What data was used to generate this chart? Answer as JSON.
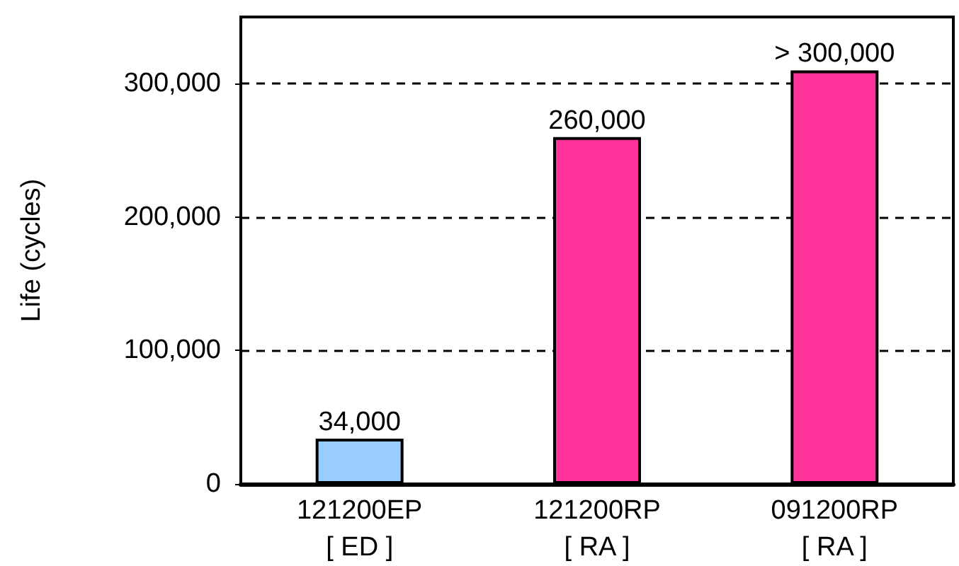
{
  "chart_data": {
    "type": "bar",
    "ylabel": "Life (cycles)",
    "categories": [
      "121200EP\n[ ED ]",
      "121200RP\n[ RA ]",
      "091200RP\n[ RA ]"
    ],
    "values": [
      34000,
      260000,
      310000
    ],
    "colors": [
      "#99ccff",
      "#ff3399",
      "#ff3399"
    ],
    "value_labels": [
      "34,000",
      "260,000",
      "> 300,000"
    ],
    "ylim": [
      0,
      350000
    ],
    "yticks": [
      0,
      {
        "value": 100000,
        "label": "100,000"
      },
      {
        "value": 200000,
        "label": "200,000"
      },
      {
        "value": 300000,
        "label": "300,000"
      }
    ],
    "grid": "y",
    "line_style": "dashed"
  }
}
